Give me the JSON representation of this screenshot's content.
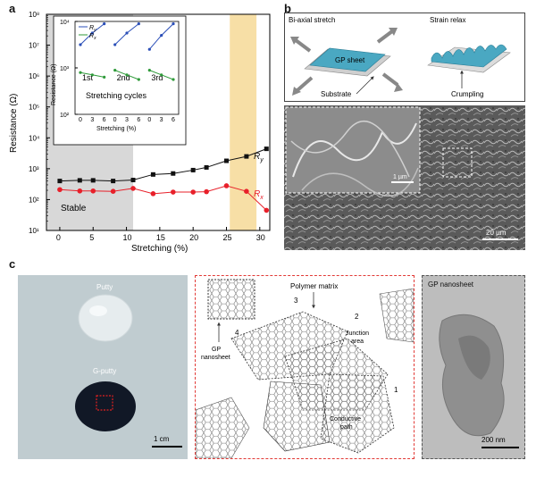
{
  "panels": {
    "a": "a",
    "b": "b",
    "c": "c"
  },
  "colors": {
    "ry": "#111111",
    "rx": "#e8202a",
    "stable_shade": "#d8d8d8",
    "highlight": "#f7dfa6",
    "inset_blue": "#2b4fb8",
    "inset_green": "#2f9a3a",
    "gp_sheet": "#4aa8c2",
    "dashed_red": "#e23a36"
  },
  "panel_a": {
    "chart_data": {
      "type": "line",
      "xlabel": "Stretching (%)",
      "ylabel": "Resistance (Ω)",
      "xlim": [
        -2,
        31.5
      ],
      "xticks": [
        0,
        5,
        10,
        15,
        20,
        25,
        30
      ],
      "yscale": "log",
      "ylim_exp": [
        1,
        8
      ],
      "ytick_labels": [
        "10¹",
        "10²",
        "10³",
        "10⁴",
        "10⁵",
        "10⁶",
        "10⁷",
        "10⁸"
      ],
      "series": [
        {
          "name": "Ry",
          "color": "#111111",
          "marker": "square",
          "x": [
            0,
            3,
            5,
            8,
            11,
            14,
            17,
            20,
            22,
            25,
            28,
            31
          ],
          "y": [
            400,
            420,
            420,
            400,
            430,
            650,
            700,
            900,
            1100,
            1800,
            2500,
            4400
          ]
        },
        {
          "name": "Rx",
          "color": "#e8202a",
          "marker": "circle",
          "x": [
            0,
            3,
            5,
            8,
            11,
            14,
            17,
            20,
            22,
            25,
            28,
            31
          ],
          "y": [
            210,
            190,
            190,
            185,
            230,
            155,
            175,
            175,
            180,
            280,
            185,
            45
          ]
        }
      ],
      "regions": [
        {
          "label": "Stable",
          "from": -2,
          "to": 11
        },
        {
          "label": "",
          "from": 25.5,
          "to": 29.5
        }
      ],
      "series_labels": [
        "R",
        "R"
      ],
      "series_subscripts": [
        "y",
        "x"
      ]
    },
    "inset": {
      "ylabel": "Resistance (Ω)",
      "ytick_labels": [
        "10²",
        "10³",
        "10⁴"
      ],
      "xlabel": "Stretching (%)",
      "xticks": [
        "0",
        "3",
        "6",
        "0",
        "3",
        "6",
        "0",
        "3",
        "6"
      ],
      "cycles": [
        "1st",
        "2nd",
        "3rd"
      ],
      "cycles_title": "Stretching cycles",
      "legend": [
        {
          "name": "R",
          "sub": "y"
        },
        {
          "name": "R",
          "sub": "x"
        }
      ],
      "ry_points": [
        [
          0,
          3.5
        ],
        [
          3,
          3.75
        ],
        [
          6,
          3.95
        ],
        [
          0,
          3.5
        ],
        [
          3,
          3.75
        ],
        [
          6,
          3.95
        ],
        [
          0,
          3.4
        ],
        [
          3,
          3.7
        ],
        [
          6,
          3.95
        ]
      ],
      "rx_points": [
        [
          0,
          2.9
        ],
        [
          3,
          2.85
        ],
        [
          6,
          2.8
        ],
        [
          0,
          2.95
        ],
        [
          3,
          2.85
        ],
        [
          6,
          2.75
        ],
        [
          0,
          2.95
        ],
        [
          3,
          2.85
        ],
        [
          6,
          2.75
        ]
      ]
    }
  },
  "panel_b": {
    "labels": {
      "biaxial": "Bi-axial stretch",
      "gp_sheet": "GP sheet",
      "strain_relax": "Strain relax",
      "substrate": "Substrate",
      "crumpling": "Crumpling"
    },
    "sem_inset_scale": "1 µm",
    "sem_scale": "20 µm"
  },
  "panel_c": {
    "photo": {
      "putty": "Putty",
      "g_putty": "G-putty",
      "scale": "1 cm"
    },
    "schematic": {
      "polymer_matrix": "Polymer matrix",
      "junction": "Junction\narea",
      "junction_l1": "Junction",
      "junction_l2": "area",
      "gp_l1": "GP",
      "gp_l2": "nanosheet",
      "conductive_l1": "Conductive",
      "conductive_l2": "path",
      "numbers": [
        "1",
        "2",
        "3",
        "4"
      ]
    },
    "tem": {
      "title": "GP nanosheet",
      "scale": "200 nm"
    }
  }
}
